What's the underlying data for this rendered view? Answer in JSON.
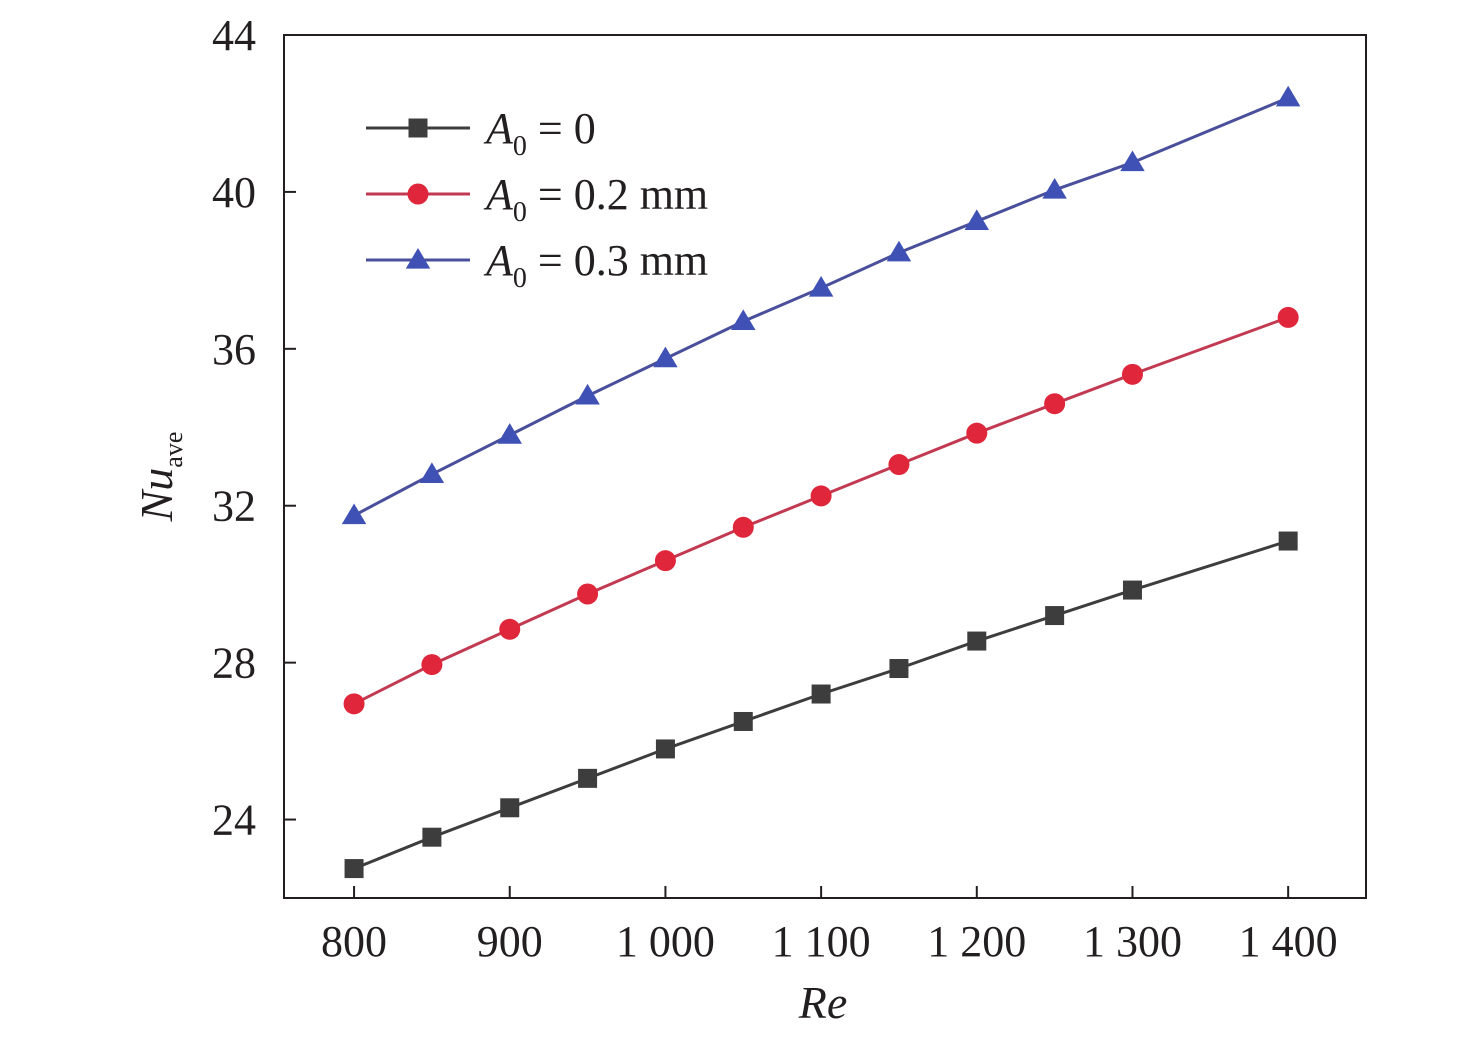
{
  "chart_data": {
    "type": "line",
    "xlabel": "Re",
    "ylabel": {
      "main": "Nu",
      "sub": "ave"
    },
    "xlim": [
      755,
      1450
    ],
    "ylim": [
      22,
      44
    ],
    "x_ticks": [
      800,
      900,
      1000,
      1100,
      1200,
      1300,
      1400
    ],
    "x_tick_labels": [
      "800",
      "900",
      "1 000",
      "1 100",
      "1 200",
      "1 300",
      "1 400"
    ],
    "y_ticks": [
      24,
      28,
      32,
      36,
      40,
      44
    ],
    "y_tick_labels": [
      "24",
      "28",
      "32",
      "36",
      "40",
      "44"
    ],
    "grid": false,
    "legend_position": "top-left",
    "x": [
      800,
      850,
      900,
      950,
      1000,
      1050,
      1100,
      1150,
      1200,
      1250,
      1300,
      1400
    ],
    "series": [
      {
        "name": "A0 = 0",
        "label": {
          "sym": "A",
          "sub": "0",
          "rest": " = 0"
        },
        "marker": "square",
        "color": "#3d3d3d",
        "line_color": "#3d3d3d",
        "values": [
          22.75,
          23.55,
          24.3,
          25.05,
          25.8,
          26.5,
          27.2,
          27.85,
          28.55,
          29.2,
          29.85,
          31.1
        ]
      },
      {
        "name": "A0 = 0.2 mm",
        "label": {
          "sym": "A",
          "sub": "0",
          "rest": " = 0.2 mm"
        },
        "marker": "circle",
        "color": "#e0263a",
        "line_color": "#c23a52",
        "values": [
          26.95,
          27.95,
          28.85,
          29.75,
          30.6,
          31.45,
          32.25,
          33.05,
          33.85,
          34.6,
          35.35,
          36.8
        ]
      },
      {
        "name": "A0 = 0.3 mm",
        "label": {
          "sym": "A",
          "sub": "0",
          "rest": " = 0.3 mm"
        },
        "marker": "triangle",
        "color": "#3f51b5",
        "line_color": "#4a4f9c",
        "values": [
          31.75,
          32.8,
          33.8,
          34.8,
          35.75,
          36.7,
          37.55,
          38.45,
          39.25,
          40.05,
          40.75,
          42.4
        ]
      }
    ]
  }
}
